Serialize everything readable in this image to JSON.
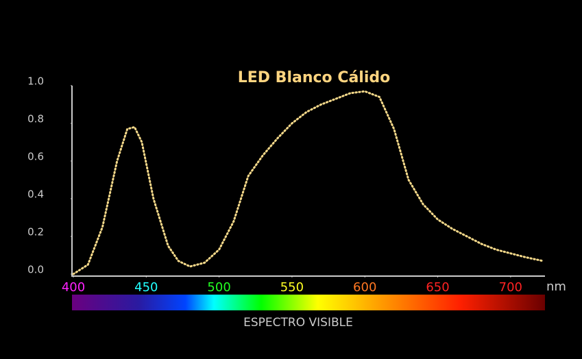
{
  "chart_data": {
    "type": "line",
    "title": "LED Blanco Cálido",
    "x_label": "nm",
    "spectrum_label": "ESPECTRO VISIBLE",
    "x": [
      400,
      410,
      420,
      430,
      437,
      442,
      447,
      455,
      465,
      472,
      480,
      490,
      500,
      510,
      520,
      530,
      540,
      550,
      560,
      570,
      580,
      590,
      600,
      610,
      620,
      630,
      640,
      650,
      660,
      670,
      680,
      690,
      700,
      710,
      722
    ],
    "values": [
      0.0,
      0.05,
      0.25,
      0.6,
      0.77,
      0.78,
      0.7,
      0.4,
      0.15,
      0.07,
      0.04,
      0.06,
      0.13,
      0.28,
      0.52,
      0.63,
      0.72,
      0.8,
      0.86,
      0.9,
      0.93,
      0.96,
      0.97,
      0.94,
      0.77,
      0.5,
      0.37,
      0.29,
      0.24,
      0.2,
      0.16,
      0.13,
      0.11,
      0.09,
      0.07
    ],
    "color": "#f5d98a",
    "xlim": [
      400,
      725
    ],
    "xticks": [
      400,
      450,
      500,
      550,
      600,
      650,
      700
    ],
    "xtick_colors": [
      "#ff22ff",
      "#22ffff",
      "#22ff22",
      "#ffff22",
      "#ff7722",
      "#ff2222",
      "#ff2222"
    ],
    "ylim": [
      0,
      1
    ],
    "yticks": [
      {
        "value": 0,
        "label": "0.0"
      },
      {
        "value": 0.2,
        "label": "0.2"
      },
      {
        "value": 0.4,
        "label": "0.4"
      },
      {
        "value": 0.6,
        "label": "0.6"
      },
      {
        "value": 0.8,
        "label": "0.8"
      },
      {
        "value": 1,
        "label": "1.0"
      }
    ]
  }
}
